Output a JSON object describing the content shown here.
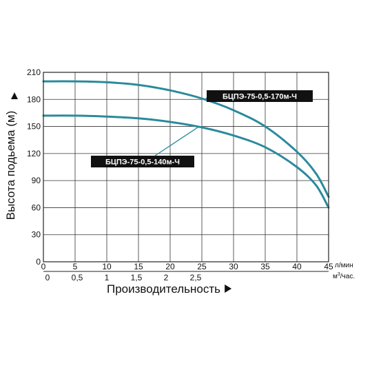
{
  "chart_data": {
    "type": "line",
    "xlabel": "Производительность",
    "ylabel": "Высота подьема (м)",
    "x_unit_primary": "л/мин",
    "x_unit_secondary_base": "м",
    "x_unit_secondary_sup": "3",
    "x_unit_secondary_rest": "/час.",
    "xlim": [
      0,
      45
    ],
    "ylim": [
      0,
      210
    ],
    "x_ticks": [
      0,
      5,
      10,
      15,
      20,
      25,
      30,
      35,
      40,
      45
    ],
    "x_tick_labels": [
      "0",
      "5",
      "10",
      "15",
      "20",
      "25",
      "30",
      "35",
      "40",
      "45"
    ],
    "x2_ticks": [
      0,
      0.5,
      1,
      1.5,
      2,
      2.5
    ],
    "x2_tick_labels": [
      "0",
      "0,5",
      "1",
      "1,5",
      "2",
      "2,5"
    ],
    "y_ticks": [
      0,
      30,
      60,
      90,
      120,
      150,
      180,
      210
    ],
    "y_tick_labels": [
      "0",
      "30",
      "60",
      "90",
      "120",
      "150",
      "180",
      "210"
    ],
    "grid": true,
    "series": [
      {
        "name": "БЦПЭ-75-0,5-170м-Ч",
        "color": "#2a8a9c",
        "x": [
          0,
          5,
          10,
          15,
          20,
          25,
          30,
          35,
          40,
          43,
          45
        ],
        "y": [
          200,
          200,
          199,
          196,
          190,
          181,
          168,
          150,
          122,
          98,
          72
        ]
      },
      {
        "name": "БЦПЭ-75-0,5-140м-Ч",
        "color": "#2a8a9c",
        "x": [
          0,
          5,
          10,
          15,
          20,
          25,
          30,
          35,
          40,
          43,
          45
        ],
        "y": [
          162,
          162,
          161,
          159,
          155,
          149,
          140,
          127,
          105,
          85,
          60
        ]
      }
    ]
  }
}
